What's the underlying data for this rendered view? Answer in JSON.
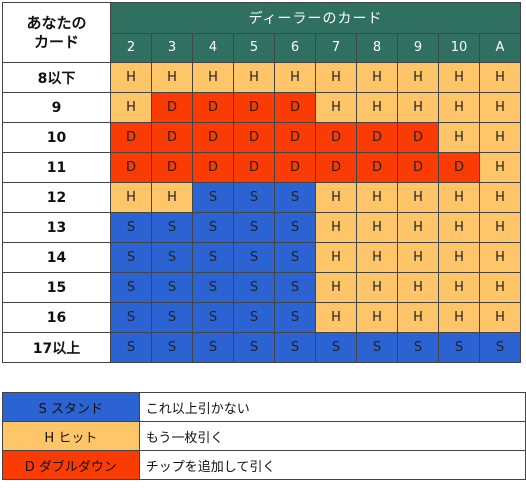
{
  "header": {
    "corner": "あなたの\nカード",
    "dealer_title": "ディーラーのカード",
    "dealer_cards": [
      "2",
      "3",
      "4",
      "5",
      "6",
      "7",
      "8",
      "9",
      "10",
      "A"
    ]
  },
  "rows": [
    {
      "hand": "8以下",
      "actions": [
        "H",
        "H",
        "H",
        "H",
        "H",
        "H",
        "H",
        "H",
        "H",
        "H"
      ]
    },
    {
      "hand": "9",
      "actions": [
        "H",
        "D",
        "D",
        "D",
        "D",
        "H",
        "H",
        "H",
        "H",
        "H"
      ]
    },
    {
      "hand": "10",
      "actions": [
        "D",
        "D",
        "D",
        "D",
        "D",
        "D",
        "D",
        "D",
        "H",
        "H"
      ]
    },
    {
      "hand": "11",
      "actions": [
        "D",
        "D",
        "D",
        "D",
        "D",
        "D",
        "D",
        "D",
        "D",
        "H"
      ]
    },
    {
      "hand": "12",
      "actions": [
        "H",
        "H",
        "S",
        "S",
        "S",
        "H",
        "H",
        "H",
        "H",
        "H"
      ]
    },
    {
      "hand": "13",
      "actions": [
        "S",
        "S",
        "S",
        "S",
        "S",
        "H",
        "H",
        "H",
        "H",
        "H"
      ]
    },
    {
      "hand": "14",
      "actions": [
        "S",
        "S",
        "S",
        "S",
        "S",
        "H",
        "H",
        "H",
        "H",
        "H"
      ]
    },
    {
      "hand": "15",
      "actions": [
        "S",
        "S",
        "S",
        "S",
        "S",
        "H",
        "H",
        "H",
        "H",
        "H"
      ]
    },
    {
      "hand": "16",
      "actions": [
        "S",
        "S",
        "S",
        "S",
        "S",
        "H",
        "H",
        "H",
        "H",
        "H"
      ]
    },
    {
      "hand": "17以上",
      "actions": [
        "S",
        "S",
        "S",
        "S",
        "S",
        "S",
        "S",
        "S",
        "S",
        "S"
      ]
    }
  ],
  "legend": [
    {
      "code": "S",
      "label": "S スタンド",
      "description": "これ以上引かない"
    },
    {
      "code": "H",
      "label": "H ヒット",
      "description": "もう一枚引く"
    },
    {
      "code": "D",
      "label": "D ダブルダウン",
      "description": "チップを追加して引く"
    }
  ],
  "colors": {
    "header_bg": "#2f7060",
    "hit": "#ffc669",
    "double": "#fa3c04",
    "stand": "#2c63d2"
  }
}
